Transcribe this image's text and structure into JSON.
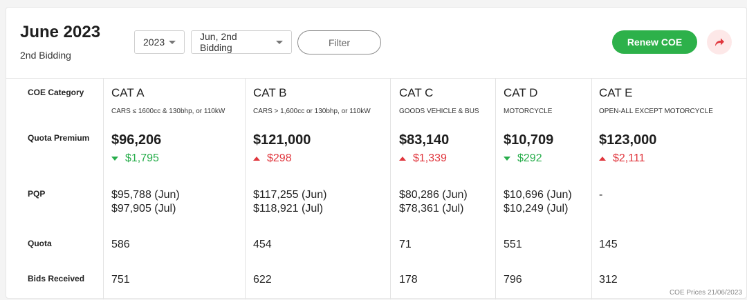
{
  "header": {
    "title": "June 2023",
    "subtitle": "2nd Bidding",
    "year_select": "2023",
    "round_select": "Jun, 2nd Bidding",
    "filter_label": "Filter",
    "renew_label": "Renew COE",
    "share_icon": "share-arrow-icon"
  },
  "row_labels": {
    "category": "COE Category",
    "premium": "Quota Premium",
    "pqp": "PQP",
    "quota": "Quota",
    "bids": "Bids Received"
  },
  "categories": [
    {
      "name": "CAT A",
      "desc": "CARS ≤ 1600cc & 130bhp, or 110kW",
      "premium": "$96,206",
      "change": "$1,795",
      "direction": "down",
      "pqp1": "$95,788 (Jun)",
      "pqp2": "$97,905 (Jul)",
      "quota": "586",
      "bids": "751"
    },
    {
      "name": "CAT B",
      "desc": "CARS > 1,600cc or 130bhp, or 110kW",
      "premium": "$121,000",
      "change": "$298",
      "direction": "up",
      "pqp1": "$117,255 (Jun)",
      "pqp2": "$118,921 (Jul)",
      "quota": "454",
      "bids": "622"
    },
    {
      "name": "CAT C",
      "desc": "GOODS VEHICLE & BUS",
      "premium": "$83,140",
      "change": "$1,339",
      "direction": "up",
      "pqp1": "$80,286 (Jun)",
      "pqp2": "$78,361 (Jul)",
      "quota": "71",
      "bids": "178"
    },
    {
      "name": "CAT D",
      "desc": "MOTORCYCLE",
      "premium": "$10,709",
      "change": "$292",
      "direction": "down",
      "pqp1": "$10,696 (Jun)",
      "pqp2": "$10,249 (Jul)",
      "quota": "551",
      "bids": "796"
    },
    {
      "name": "CAT E",
      "desc": "OPEN-ALL EXCEPT MOTORCYCLE",
      "premium": "$123,000",
      "change": "$2,111",
      "direction": "up",
      "pqp1": "-",
      "pqp2": "",
      "quota": "145",
      "bids": "312"
    }
  ],
  "colors": {
    "renew_green": "#2db14a",
    "down_green": "#27ad4b",
    "up_red": "#e0363d"
  },
  "footer": "COE Prices 21/06/2023"
}
